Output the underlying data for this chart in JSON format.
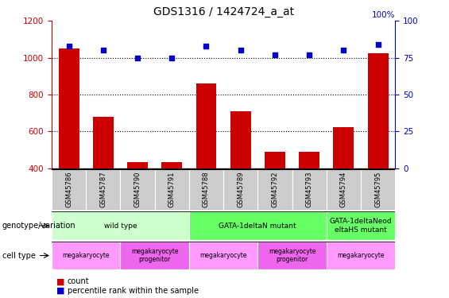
{
  "title": "GDS1316 / 1424724_a_at",
  "samples": [
    "GSM45786",
    "GSM45787",
    "GSM45790",
    "GSM45791",
    "GSM45788",
    "GSM45789",
    "GSM45792",
    "GSM45793",
    "GSM45794",
    "GSM45795"
  ],
  "count_values": [
    1050,
    680,
    435,
    435,
    860,
    710,
    490,
    490,
    625,
    1025
  ],
  "percentile_values": [
    83,
    80,
    75,
    75,
    83,
    80,
    77,
    77,
    80,
    84
  ],
  "ylim_left": [
    400,
    1200
  ],
  "ylim_right": [
    0,
    100
  ],
  "yticks_left": [
    400,
    600,
    800,
    1000,
    1200
  ],
  "yticks_right": [
    0,
    25,
    50,
    75,
    100
  ],
  "bar_color": "#cc0000",
  "dot_color": "#0000cc",
  "genotype_groups": [
    {
      "label": "wild type",
      "start": 0,
      "end": 4,
      "color": "#ccffcc"
    },
    {
      "label": "GATA-1deltaN mutant",
      "start": 4,
      "end": 8,
      "color": "#66ff66"
    },
    {
      "label": "GATA-1deltaNeod\neltaHS mutant",
      "start": 8,
      "end": 10,
      "color": "#66ff66"
    }
  ],
  "cell_type_groups": [
    {
      "label": "megakaryocyte",
      "start": 0,
      "end": 2,
      "color": "#ff99ff"
    },
    {
      "label": "megakaryocyte\nprogenitor",
      "start": 2,
      "end": 4,
      "color": "#ee66ee"
    },
    {
      "label": "megakaryocyte",
      "start": 4,
      "end": 6,
      "color": "#ff99ff"
    },
    {
      "label": "megakaryocyte\nprogenitor",
      "start": 6,
      "end": 8,
      "color": "#ee66ee"
    },
    {
      "label": "megakaryocyte",
      "start": 8,
      "end": 10,
      "color": "#ff99ff"
    }
  ],
  "legend_count_label": "count",
  "legend_pct_label": "percentile rank within the sample",
  "left_axis_color": "#cc0000",
  "right_axis_color": "#0000cc",
  "tick_label_bg": "#cccccc",
  "right_axis_label": "100%"
}
